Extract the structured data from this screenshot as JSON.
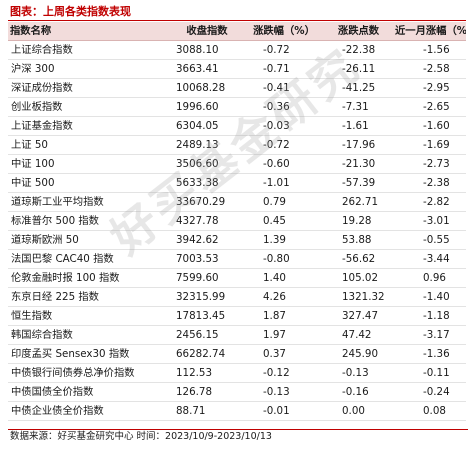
{
  "title": "图表：上周各类指数表现",
  "columns": [
    "指数名称",
    "收盘指数",
    "涨跌幅（%）",
    "涨跌点数",
    "近一月涨幅（%）"
  ],
  "rows": [
    [
      "上证综合指数",
      "3088.10",
      "-0.72",
      "-22.38",
      "-1.56"
    ],
    [
      "沪深 300",
      "3663.41",
      "-0.71",
      "-26.11",
      "-2.58"
    ],
    [
      "深证成份指数",
      "10068.28",
      "-0.41",
      "-41.25",
      "-2.95"
    ],
    [
      "创业板指数",
      "1996.60",
      "-0.36",
      "-7.31",
      "-2.65"
    ],
    [
      "上证基金指数",
      "6304.05",
      "-0.03",
      "-1.61",
      "-1.60"
    ],
    [
      "上证 50",
      "2489.13",
      "-0.72",
      "-17.96",
      "-1.69"
    ],
    [
      "中证 100",
      "3506.60",
      "-0.60",
      "-21.30",
      "-2.73"
    ],
    [
      "中证 500",
      "5633.38",
      "-1.01",
      "-57.39",
      "-2.38"
    ],
    [
      "道琼斯工业平均指数",
      "33670.29",
      "0.79",
      "262.71",
      "-2.82"
    ],
    [
      "标准普尔 500 指数",
      "4327.78",
      "0.45",
      "19.28",
      "-3.01"
    ],
    [
      "道琼斯欧洲 50",
      "3942.62",
      "1.39",
      "53.88",
      "-0.55"
    ],
    [
      "法国巴黎 CAC40 指数",
      "7003.53",
      "-0.80",
      "-56.62",
      "-3.44"
    ],
    [
      "伦敦金融时报 100 指数",
      "7599.60",
      "1.40",
      "105.02",
      "0.96"
    ],
    [
      "东京日经 225 指数",
      "32315.99",
      "4.26",
      "1321.32",
      "-1.40"
    ],
    [
      "恒生指数",
      "17813.45",
      "1.87",
      "327.47",
      "-1.18"
    ],
    [
      "韩国综合指数",
      "2456.15",
      "1.97",
      "47.42",
      "-3.17"
    ],
    [
      "印度孟买 Sensex30 指数",
      "66282.74",
      "0.37",
      "245.90",
      "-1.36"
    ],
    [
      "中债银行间债券总净价指数",
      "112.53",
      "-0.12",
      "-0.13",
      "-0.11"
    ],
    [
      "中债国债全价指数",
      "126.78",
      "-0.13",
      "-0.16",
      "-0.24"
    ],
    [
      "中债企业债全价指数",
      "88.71",
      "-0.01",
      "0.00",
      "0.08"
    ]
  ],
  "footer": "数据来源：好买基金研究中心 时间：2023/10/9-2023/10/13",
  "watermark": "好买基金研究",
  "colors": {
    "accent": "#c00000",
    "header_bg": "#f2dcdb"
  }
}
